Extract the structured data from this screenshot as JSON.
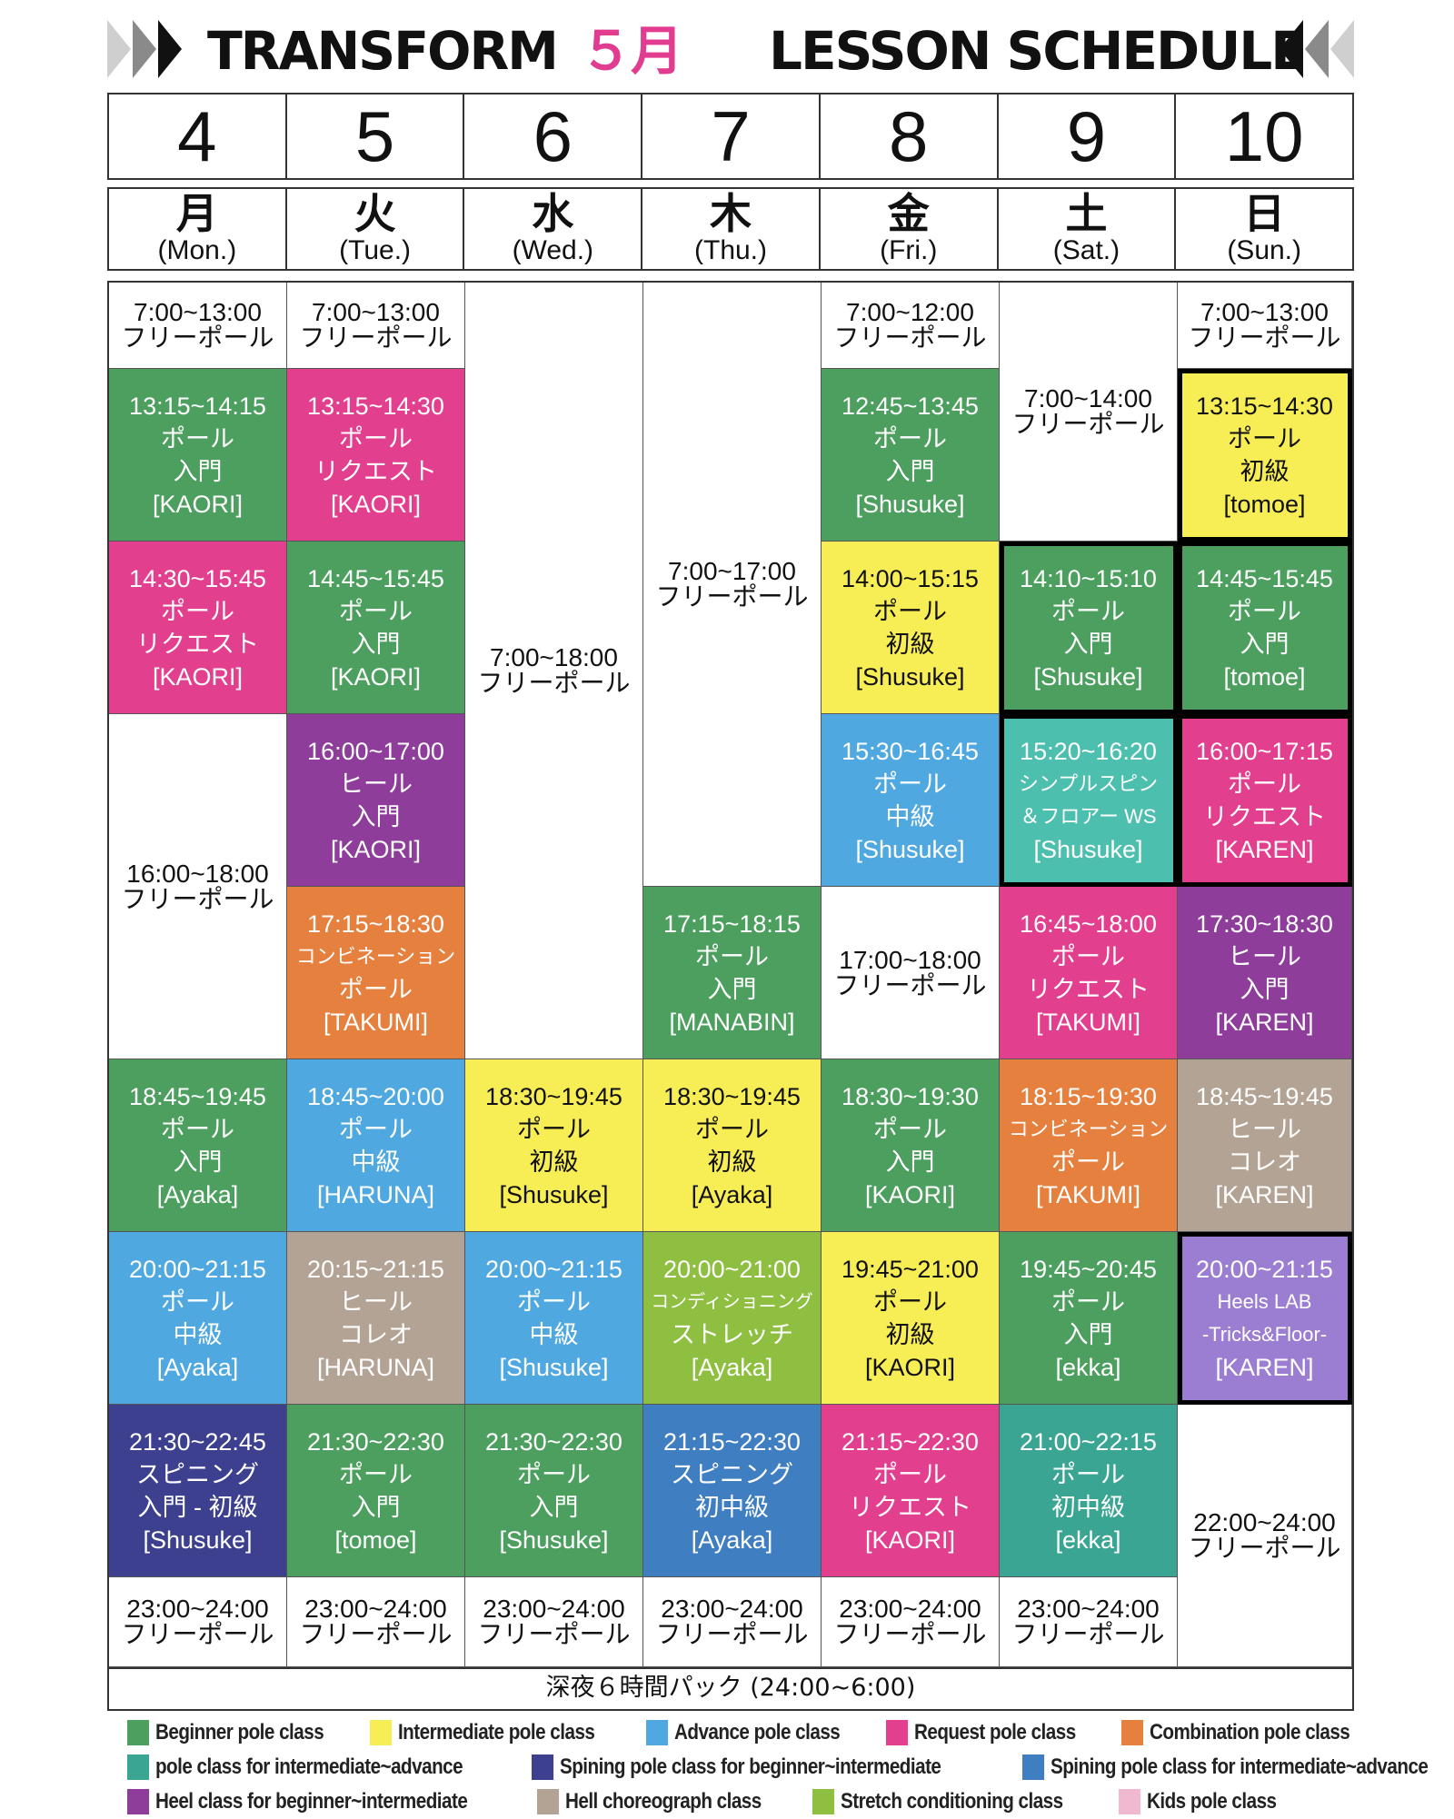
{
  "header": {
    "brand": "TRANSFORM",
    "month": "５月",
    "title": "LESSON SCHEDULE"
  },
  "dates": [
    "4",
    "5",
    "6",
    "7",
    "8",
    "9",
    "10"
  ],
  "days": [
    {
      "jp": "月",
      "en": "(Mon.)"
    },
    {
      "jp": "火",
      "en": "(Tue.)"
    },
    {
      "jp": "水",
      "en": "(Wed.)"
    },
    {
      "jp": "木",
      "en": "(Thu.)"
    },
    {
      "jp": "金",
      "en": "(Fri.)"
    },
    {
      "jp": "土",
      "en": "(Sat.)"
    },
    {
      "jp": "日",
      "en": "(Sun.)"
    }
  ],
  "colors": {
    "beginner": "#4c9f5e",
    "intermediate": "#f7ee55",
    "advance": "#4fa8e0",
    "request": "#e33f8f",
    "combination": "#e5803f",
    "pole_int_adv": "#3aa592",
    "spin_beg_int": "#3d3f8f",
    "spin_int_adv": "#3f7ec1",
    "heel": "#8e3d9b",
    "heel_choreo": "#b3a395",
    "stretch": "#8ebf41",
    "kids": "#f1b9cf",
    "heels_lab": "#9b7ed1",
    "simple_spin": "#4cbfae"
  },
  "schedule": {
    "mon": [
      {
        "lines": [
          "7:00~13:00",
          "フリーポール"
        ]
      },
      {
        "lines": [
          "13:15~14:15",
          "ポール",
          "入門",
          "[KAORI]"
        ]
      },
      {
        "lines": [
          "14:30~15:45",
          "ポール",
          "リクエスト",
          "[KAORI]"
        ]
      },
      {
        "lines": [
          "16:00~18:00",
          "フリーポール"
        ]
      },
      {
        "lines": [
          "18:45~19:45",
          "ポール",
          "入門",
          "[Ayaka]"
        ]
      },
      {
        "lines": [
          "20:00~21:15",
          "ポール",
          "中級",
          "[Ayaka]"
        ]
      },
      {
        "lines": [
          "21:30~22:45",
          "スピニング",
          "入門 - 初級",
          "[Shusuke]"
        ]
      },
      {
        "lines": [
          "23:00~24:00",
          "フリーポール"
        ]
      }
    ],
    "tue": [
      {
        "lines": [
          "7:00~13:00",
          "フリーポール"
        ]
      },
      {
        "lines": [
          "13:15~14:30",
          "ポール",
          "リクエスト",
          "[KAORI]"
        ]
      },
      {
        "lines": [
          "14:45~15:45",
          "ポール",
          "入門",
          "[KAORI]"
        ]
      },
      {
        "lines": [
          "16:00~17:00",
          "ヒール",
          "入門",
          "[KAORI]"
        ]
      },
      {
        "lines": [
          "17:15~18:30",
          "コンビネーション",
          "ポール",
          "[TAKUMI]"
        ]
      },
      {
        "lines": [
          "18:45~20:00",
          "ポール",
          "中級",
          "[HARUNA]"
        ]
      },
      {
        "lines": [
          "20:15~21:15",
          "ヒール",
          "コレオ",
          "[HARUNA]"
        ]
      },
      {
        "lines": [
          "21:30~22:30",
          "ポール",
          "入門",
          "[tomoe]"
        ]
      },
      {
        "lines": [
          "23:00~24:00",
          "フリーポール"
        ]
      }
    ],
    "wed": [
      {
        "lines": [
          "7:00~18:00",
          "フリーポール"
        ]
      },
      {
        "lines": [
          "18:30~19:45",
          "ポール",
          "初級",
          "[Shusuke]"
        ]
      },
      {
        "lines": [
          "20:00~21:15",
          "ポール",
          "中級",
          "[Shusuke]"
        ]
      },
      {
        "lines": [
          "21:30~22:30",
          "ポール",
          "入門",
          "[Shusuke]"
        ]
      },
      {
        "lines": [
          "23:00~24:00",
          "フリーポール"
        ]
      }
    ],
    "thu": [
      {
        "lines": [
          "7:00~17:00",
          "フリーポール"
        ]
      },
      {
        "lines": [
          "17:15~18:15",
          "ポール",
          "入門",
          "[MANABIN]"
        ]
      },
      {
        "lines": [
          "18:30~19:45",
          "ポール",
          "初級",
          "[Ayaka]"
        ]
      },
      {
        "lines": [
          "20:00~21:00",
          "コンディショニング",
          "ストレッチ",
          "[Ayaka]"
        ]
      },
      {
        "lines": [
          "21:15~22:30",
          "スピニング",
          "初中級",
          "[Ayaka]"
        ]
      },
      {
        "lines": [
          "23:00~24:00",
          "フリーポール"
        ]
      }
    ],
    "fri": [
      {
        "lines": [
          "7:00~12:00",
          "フリーポール"
        ]
      },
      {
        "lines": [
          "12:45~13:45",
          "ポール",
          "入門",
          "[Shusuke]"
        ]
      },
      {
        "lines": [
          "14:00~15:15",
          "ポール",
          "初級",
          "[Shusuke]"
        ]
      },
      {
        "lines": [
          "15:30~16:45",
          "ポール",
          "中級",
          "[Shusuke]"
        ]
      },
      {
        "lines": [
          "17:00~18:00",
          "フリーポール"
        ]
      },
      {
        "lines": [
          "18:30~19:30",
          "ポール",
          "入門",
          "[KAORI]"
        ]
      },
      {
        "lines": [
          "19:45~21:00",
          "ポール",
          "初級",
          "[KAORI]"
        ]
      },
      {
        "lines": [
          "21:15~22:30",
          "ポール",
          "リクエスト",
          "[KAORI]"
        ]
      },
      {
        "lines": [
          "23:00~24:00",
          "フリーポール"
        ]
      }
    ],
    "sat": [
      {
        "lines": [
          "7:00~14:00",
          "フリーポール"
        ]
      },
      {
        "lines": [
          "14:10~15:10",
          "ポール",
          "入門",
          "[Shusuke]"
        ]
      },
      {
        "lines": [
          "15:20~16:20",
          "シンプルスピン",
          "＆フロアー WS",
          "[Shusuke]"
        ]
      },
      {
        "lines": [
          "16:45~18:00",
          "ポール",
          "リクエスト",
          "[TAKUMI]"
        ]
      },
      {
        "lines": [
          "18:15~19:30",
          "コンビネーション",
          "ポール",
          "[TAKUMI]"
        ]
      },
      {
        "lines": [
          "19:45~20:45",
          "ポール",
          "入門",
          "[ekka]"
        ]
      },
      {
        "lines": [
          "21:00~22:15",
          "ポール",
          "初中級",
          "[ekka]"
        ]
      },
      {
        "lines": [
          "23:00~24:00",
          "フリーポール"
        ]
      }
    ],
    "sun": [
      {
        "lines": [
          "7:00~13:00",
          "フリーポール"
        ]
      },
      {
        "lines": [
          "13:15~14:30",
          "ポール",
          "初級",
          "[tomoe]"
        ]
      },
      {
        "lines": [
          "14:45~15:45",
          "ポール",
          "入門",
          "[tomoe]"
        ]
      },
      {
        "lines": [
          "16:00~17:15",
          "ポール",
          "リクエスト",
          "[KAREN]"
        ]
      },
      {
        "lines": [
          "17:30~18:30",
          "ヒール",
          "入門",
          "[KAREN]"
        ]
      },
      {
        "lines": [
          "18:45~19:45",
          "ヒール",
          "コレオ",
          "[KAREN]"
        ]
      },
      {
        "lines": [
          "20:00~21:15",
          "Heels LAB",
          "-Tricks&Floor-",
          "[KAREN]"
        ]
      },
      {
        "lines": [
          "22:00~24:00",
          "フリーポール"
        ]
      }
    ]
  },
  "late_night": "深夜６時間パック (24:00~6:00)",
  "legend": [
    [
      {
        "label": "Beginner pole class",
        "color": "#4c9f5e"
      },
      {
        "label": "Intermediate pole class",
        "color": "#f7ee55"
      },
      {
        "label": "Advance pole class",
        "color": "#4fa8e0"
      },
      {
        "label": "Request pole class",
        "color": "#e33f8f"
      },
      {
        "label": "Combination pole class",
        "color": "#e5803f"
      }
    ],
    [
      {
        "label": "pole class for intermediate~advance",
        "color": "#3aa592"
      },
      {
        "label": "Spining pole class for beginner~intermediate",
        "color": "#3d3f8f"
      },
      {
        "label": "Spining pole class for intermediate~advance",
        "color": "#3f7ec1"
      }
    ],
    [
      {
        "label": "Heel class for beginner~intermediate",
        "color": "#8e3d9b"
      },
      {
        "label": "Hell choreograph class",
        "color": "#b3a395"
      },
      {
        "label": "Stretch conditioning class",
        "color": "#8ebf41"
      },
      {
        "label": "Kids pole class",
        "color": "#f1b9cf"
      }
    ]
  ]
}
